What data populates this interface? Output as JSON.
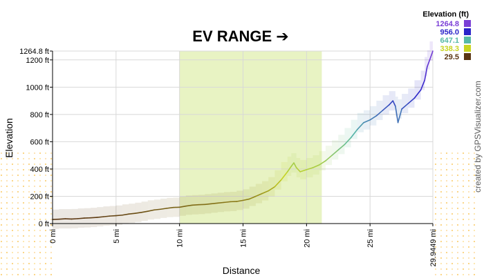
{
  "chart_data": {
    "type": "area",
    "title": "EV RANGE ➔",
    "xlabel": "Distance",
    "ylabel": "Elevation",
    "xlim": [
      0,
      29.9449
    ],
    "ylim": [
      0,
      1264.8
    ],
    "x_ticks": [
      {
        "value": 0,
        "label": "0 mi"
      },
      {
        "value": 5,
        "label": "5 mi"
      },
      {
        "value": 10,
        "label": "10 mi"
      },
      {
        "value": 15,
        "label": "15 mi"
      },
      {
        "value": 20,
        "label": "20 mi"
      },
      {
        "value": 25,
        "label": "25 mi"
      },
      {
        "value": 29.9449,
        "label": "29.9449 mi"
      }
    ],
    "y_ticks": [
      {
        "value": 0,
        "label": "0 ft"
      },
      {
        "value": 200,
        "label": "200 ft"
      },
      {
        "value": 400,
        "label": "400 ft"
      },
      {
        "value": 600,
        "label": "600 ft"
      },
      {
        "value": 800,
        "label": "800 ft"
      },
      {
        "value": 1000,
        "label": "1000 ft"
      },
      {
        "value": 1200,
        "label": "1200 ft"
      },
      {
        "value": 1264.8,
        "label": "1264.8 ft"
      }
    ],
    "highlight_range": [
      10,
      21.2
    ],
    "grid": true,
    "series": [
      {
        "x": [
          0,
          0.5,
          1,
          1.5,
          2,
          2.5,
          3,
          3.5,
          4,
          4.5,
          5,
          5.5,
          6,
          6.5,
          7,
          7.5,
          8,
          8.5,
          9,
          9.5,
          10,
          10.5,
          11,
          11.5,
          12,
          12.5,
          13,
          13.5,
          14,
          14.5,
          15,
          15.5,
          16,
          16.5,
          17,
          17.5,
          18,
          18.5,
          18.8,
          19.0,
          19.2,
          19.5,
          20,
          20.5,
          21,
          21.5,
          22,
          22.5,
          23,
          23.5,
          24,
          24.5,
          25,
          25.5,
          26,
          26.5,
          26.8,
          27.0,
          27.2,
          27.5,
          28,
          28.5,
          29,
          29.3,
          29.5,
          29.7,
          29.9449
        ],
        "y": [
          30,
          32,
          35,
          33,
          36,
          40,
          42,
          45,
          50,
          55,
          58,
          62,
          70,
          75,
          82,
          90,
          100,
          105,
          112,
          118,
          120,
          128,
          135,
          138,
          140,
          145,
          150,
          155,
          160,
          162,
          170,
          180,
          200,
          220,
          240,
          270,
          320,
          380,
          420,
          445,
          410,
          380,
          395,
          410,
          430,
          460,
          500,
          540,
          580,
          630,
          690,
          740,
          760,
          790,
          830,
          870,
          900,
          860,
          740,
          840,
          880,
          920,
          980,
          1050,
          1150,
          1200,
          1264.8
        ]
      }
    ],
    "legend": {
      "title": "Elevation (ft)",
      "items": [
        {
          "label": "1264.8",
          "color": "#7a3fd6"
        },
        {
          "label": "956.0",
          "color": "#2a23c9"
        },
        {
          "label": "647.1",
          "color": "#56b9a5"
        },
        {
          "label": "338.3",
          "color": "#c8d41f"
        },
        {
          "label": "29.5",
          "color": "#5a3512"
        }
      ]
    },
    "watermark": "created by GPSVisualizer.com",
    "colors": {
      "grid": "#d8d8d8",
      "highlight": "#e8f3c3",
      "axis": "#000000"
    }
  }
}
